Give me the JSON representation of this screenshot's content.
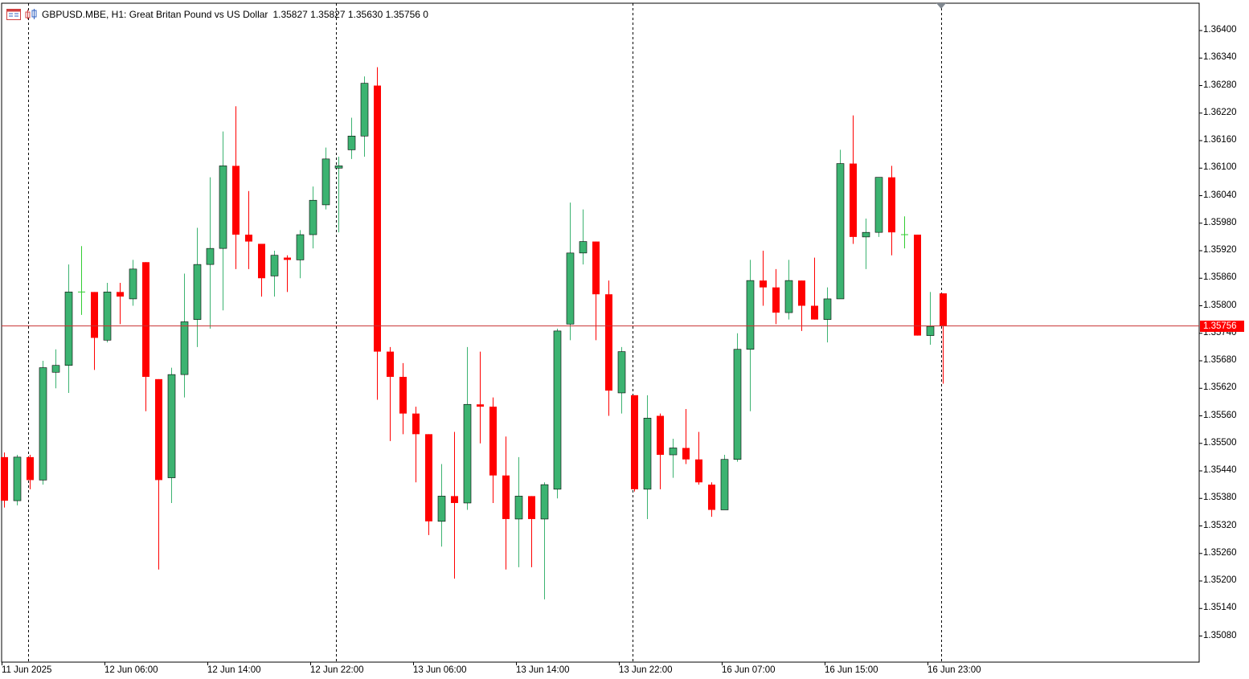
{
  "header": {
    "symbol_line": "GBPUSD.MBE, H1:  Great Britan Pound vs US Dollar",
    "ohlc": "1.35827 1.35827 1.35630 1.35756  0"
  },
  "colors": {
    "bull": "#3cb371",
    "bear": "#ff0000",
    "doji": "#32cd32",
    "axis": "#000000",
    "price_line": "#c83232",
    "background": "#ffffff"
  },
  "icons": [
    "chart-window-icon",
    "candlestick-toggle-icon"
  ],
  "current_price": "1.35756",
  "y_axis_labels": [
    "1.36400",
    "1.36340",
    "1.36280",
    "1.36220",
    "1.36160",
    "1.36100",
    "1.36040",
    "1.35980",
    "1.35920",
    "1.35860",
    "1.35800",
    "1.35740",
    "1.35680",
    "1.35620",
    "1.35560",
    "1.35500",
    "1.35440",
    "1.35380",
    "1.35320",
    "1.35260",
    "1.35200",
    "1.35140",
    "1.35080"
  ],
  "x_axis_labels": [
    "11 Jun 2025",
    "12 Jun 06:00",
    "12 Jun 14:00",
    "12 Jun 22:00",
    "13 Jun 06:00",
    "13 Jun 14:00",
    "13 Jun 22:00",
    "16 Jun 07:00",
    "16 Jun 15:00",
    "16 Jun 23:00"
  ],
  "chart_data": {
    "type": "candlestick",
    "symbol": "GBPUSD.MBE",
    "timeframe": "H1",
    "ylim": [
      1.3504,
      1.3644
    ],
    "ohlc": [
      [
        1.3547,
        1.3548,
        1.3536,
        1.35375
      ],
      [
        1.35375,
        1.35475,
        1.35365,
        1.3547
      ],
      [
        1.3547,
        1.35475,
        1.354,
        1.3542
      ],
      [
        1.3542,
        1.3568,
        1.3541,
        1.35665
      ],
      [
        1.35655,
        1.35705,
        1.3562,
        1.3567
      ],
      [
        1.3567,
        1.3589,
        1.3561,
        1.3583
      ],
      [
        1.3583,
        1.3593,
        1.3578,
        1.3583
      ],
      [
        1.3583,
        1.3583,
        1.3566,
        1.3573
      ],
      [
        1.35725,
        1.3585,
        1.3572,
        1.3583
      ],
      [
        1.3583,
        1.3585,
        1.3576,
        1.3582
      ],
      [
        1.35815,
        1.359,
        1.358,
        1.3588
      ],
      [
        1.35895,
        1.35895,
        1.3557,
        1.35645
      ],
      [
        1.3564,
        1.3564,
        1.35225,
        1.3542
      ],
      [
        1.35425,
        1.35665,
        1.3537,
        1.3565
      ],
      [
        1.3565,
        1.3587,
        1.356,
        1.35765
      ],
      [
        1.3577,
        1.3597,
        1.3571,
        1.3589
      ],
      [
        1.3589,
        1.3608,
        1.3575,
        1.35925
      ],
      [
        1.35925,
        1.3618,
        1.3579,
        1.36105
      ],
      [
        1.36105,
        1.36235,
        1.3588,
        1.35955
      ],
      [
        1.35955,
        1.3605,
        1.3588,
        1.3594
      ],
      [
        1.35935,
        1.35935,
        1.3582,
        1.3586
      ],
      [
        1.35865,
        1.3592,
        1.3582,
        1.3591
      ],
      [
        1.35905,
        1.3591,
        1.3583,
        1.359
      ],
      [
        1.359,
        1.35965,
        1.3586,
        1.35955
      ],
      [
        1.35955,
        1.3606,
        1.35925,
        1.3603
      ],
      [
        1.3602,
        1.36145,
        1.3601,
        1.3612
      ],
      [
        1.361,
        1.36125,
        1.3596,
        1.36105
      ],
      [
        1.3614,
        1.3621,
        1.3612,
        1.3617
      ],
      [
        1.3617,
        1.363,
        1.36125,
        1.36285
      ],
      [
        1.3628,
        1.3632,
        1.35595,
        1.357
      ],
      [
        1.357,
        1.3571,
        1.35505,
        1.35645
      ],
      [
        1.35645,
        1.35675,
        1.3552,
        1.35565
      ],
      [
        1.35565,
        1.3558,
        1.35415,
        1.3552
      ],
      [
        1.3552,
        1.3552,
        1.353,
        1.3533
      ],
      [
        1.3533,
        1.35455,
        1.35275,
        1.35385
      ],
      [
        1.35385,
        1.35525,
        1.35205,
        1.3537
      ],
      [
        1.3537,
        1.3571,
        1.35355,
        1.35585
      ],
      [
        1.35585,
        1.357,
        1.355,
        1.3558
      ],
      [
        1.3558,
        1.356,
        1.3537,
        1.3543
      ],
      [
        1.3543,
        1.35515,
        1.35225,
        1.35335
      ],
      [
        1.35335,
        1.3547,
        1.3523,
        1.35385
      ],
      [
        1.35385,
        1.35385,
        1.3523,
        1.35335
      ],
      [
        1.35335,
        1.35415,
        1.3516,
        1.3541
      ],
      [
        1.354,
        1.3575,
        1.3538,
        1.35745
      ],
      [
        1.3576,
        1.36025,
        1.35725,
        1.35915
      ],
      [
        1.35915,
        1.3601,
        1.3589,
        1.3594
      ],
      [
        1.3594,
        1.3594,
        1.35725,
        1.35825
      ],
      [
        1.35825,
        1.35855,
        1.3556,
        1.35615
      ],
      [
        1.3561,
        1.3571,
        1.35565,
        1.357
      ],
      [
        1.35605,
        1.35605,
        1.35395,
        1.354
      ],
      [
        1.354,
        1.35605,
        1.35335,
        1.35555
      ],
      [
        1.3556,
        1.35565,
        1.354,
        1.35475
      ],
      [
        1.35475,
        1.3551,
        1.35425,
        1.3549
      ],
      [
        1.3549,
        1.35575,
        1.35455,
        1.35465
      ],
      [
        1.35465,
        1.35525,
        1.3541,
        1.35415
      ],
      [
        1.3541,
        1.35415,
        1.3534,
        1.35355
      ],
      [
        1.35355,
        1.35475,
        1.35355,
        1.35465
      ],
      [
        1.35465,
        1.3574,
        1.3546,
        1.35705
      ],
      [
        1.35705,
        1.359,
        1.3557,
        1.35855
      ],
      [
        1.35855,
        1.3592,
        1.358,
        1.3584
      ],
      [
        1.3584,
        1.3588,
        1.3576,
        1.35785
      ],
      [
        1.35785,
        1.359,
        1.3577,
        1.35855
      ],
      [
        1.35855,
        1.35855,
        1.35745,
        1.358
      ],
      [
        1.358,
        1.35905,
        1.3577,
        1.3577
      ],
      [
        1.3577,
        1.3584,
        1.3572,
        1.35815
      ],
      [
        1.35815,
        1.3614,
        1.35815,
        1.3611
      ],
      [
        1.3611,
        1.36215,
        1.35935,
        1.3595
      ],
      [
        1.3595,
        1.3599,
        1.3588,
        1.3596
      ],
      [
        1.3596,
        1.3608,
        1.3595,
        1.3608
      ],
      [
        1.3608,
        1.36105,
        1.3591,
        1.3596
      ],
      [
        1.35955,
        1.35995,
        1.35925,
        1.35955
      ],
      [
        1.35955,
        1.35955,
        1.35735,
        1.35735
      ],
      [
        1.35735,
        1.3583,
        1.35715,
        1.35755
      ],
      [
        1.35827,
        1.35827,
        1.3563,
        1.35756
      ]
    ]
  }
}
